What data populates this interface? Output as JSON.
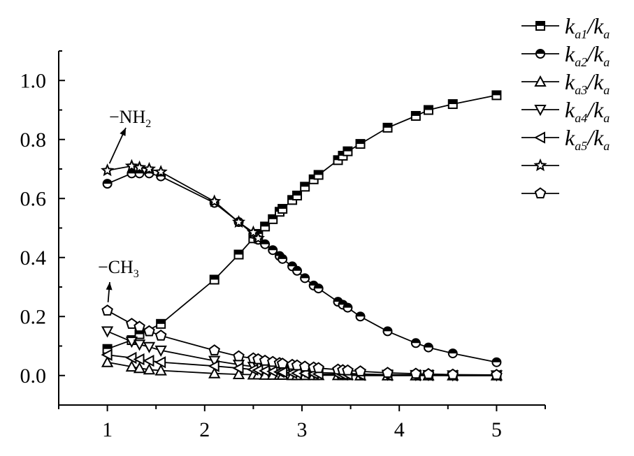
{
  "chart_data": {
    "type": "line",
    "title": "",
    "xlabel": "",
    "ylabel": "",
    "xlim": [
      0.5,
      5.5
    ],
    "ylim": [
      -0.1,
      1.1
    ],
    "x_ticks": [
      1,
      2,
      3,
      4,
      5
    ],
    "y_ticks": [
      0.0,
      0.2,
      0.4,
      0.6,
      0.8,
      1.0
    ],
    "x_tick_labels": [
      "1",
      "2",
      "3",
      "4",
      "5"
    ],
    "y_tick_labels": [
      "0.0",
      "0.2",
      "0.4",
      "0.6",
      "0.8",
      "1.0"
    ],
    "grid": false,
    "legend_position": "top-right",
    "series": [
      {
        "legend": {
          "pre": "k",
          "pre_sub": "a1",
          "post": "k",
          "post_sub": "a"
        },
        "marker": "square",
        "x": [
          1.0,
          1.25,
          1.33,
          1.55,
          2.1,
          2.35,
          2.5,
          2.55,
          2.62,
          2.7,
          2.77,
          2.8,
          2.9,
          2.95,
          3.03,
          3.12,
          3.17,
          3.37,
          3.42,
          3.47,
          3.6,
          3.88,
          4.17,
          4.3,
          4.55,
          5.0
        ],
        "y": [
          0.09,
          0.12,
          0.14,
          0.175,
          0.325,
          0.41,
          0.465,
          0.48,
          0.505,
          0.53,
          0.555,
          0.565,
          0.595,
          0.61,
          0.64,
          0.665,
          0.68,
          0.73,
          0.745,
          0.76,
          0.785,
          0.84,
          0.88,
          0.9,
          0.92,
          0.95
        ]
      },
      {
        "legend": {
          "pre": "k",
          "pre_sub": "a2",
          "post": "k",
          "post_sub": "a"
        },
        "marker": "circle",
        "x": [
          1.0,
          1.25,
          1.33,
          1.43,
          1.55,
          2.1,
          2.35,
          2.5,
          2.55,
          2.62,
          2.7,
          2.77,
          2.8,
          2.9,
          2.95,
          3.03,
          3.12,
          3.17,
          3.37,
          3.42,
          3.47,
          3.6,
          3.88,
          4.17,
          4.3,
          4.55,
          5.0
        ],
        "y": [
          0.65,
          0.685,
          0.685,
          0.685,
          0.675,
          0.585,
          0.52,
          0.48,
          0.46,
          0.445,
          0.425,
          0.405,
          0.395,
          0.37,
          0.355,
          0.33,
          0.305,
          0.295,
          0.25,
          0.24,
          0.23,
          0.2,
          0.15,
          0.11,
          0.095,
          0.075,
          0.045
        ]
      },
      {
        "legend": {
          "pre": "k",
          "pre_sub": "a3",
          "post": "k",
          "post_sub": "a"
        },
        "marker": "triangle-up",
        "x": [
          1.0,
          1.25,
          1.33,
          1.43,
          1.55,
          2.1,
          2.35,
          2.5,
          2.55,
          2.62,
          2.7,
          2.77,
          2.8,
          2.9,
          2.95,
          3.03,
          3.12,
          3.17,
          3.37,
          3.42,
          3.47,
          3.6,
          3.88,
          4.17,
          4.3,
          4.55,
          5.0
        ],
        "y": [
          0.045,
          0.03,
          0.025,
          0.02,
          0.017,
          0.007,
          0.004,
          0.003,
          0.003,
          0.002,
          0.002,
          0.002,
          0.002,
          0.001,
          0.001,
          0.001,
          0.001,
          0.001,
          0.001,
          0.001,
          0.001,
          0.0,
          0.0,
          0.0,
          0.0,
          0.0,
          0.0
        ]
      },
      {
        "legend": {
          "pre": "k",
          "pre_sub": "a4",
          "post": "k",
          "post_sub": "a"
        },
        "marker": "triangle-down",
        "x": [
          1.0,
          1.25,
          1.33,
          1.43,
          1.55,
          2.1,
          2.35,
          2.5,
          2.55,
          2.62,
          2.7,
          2.77,
          2.8,
          2.9,
          2.95,
          3.03,
          3.12,
          3.17,
          3.37,
          3.42,
          3.47,
          3.6,
          3.88,
          4.17,
          4.3,
          4.55,
          5.0
        ],
        "y": [
          0.15,
          0.115,
          0.105,
          0.097,
          0.085,
          0.05,
          0.037,
          0.03,
          0.028,
          0.025,
          0.022,
          0.02,
          0.019,
          0.016,
          0.015,
          0.013,
          0.011,
          0.01,
          0.008,
          0.007,
          0.007,
          0.005,
          0.003,
          0.002,
          0.002,
          0.001,
          0.001
        ]
      },
      {
        "legend": {
          "pre": "k",
          "pre_sub": "a5",
          "post": "k",
          "post_sub": "a"
        },
        "marker": "triangle-left",
        "x": [
          1.0,
          1.25,
          1.33,
          1.43,
          1.55,
          2.1,
          2.35,
          2.5,
          2.55,
          2.62,
          2.7,
          2.77,
          2.8,
          2.9,
          2.95,
          3.03,
          3.12,
          3.17,
          3.37,
          3.42,
          3.47,
          3.6,
          3.88,
          4.17,
          4.3,
          4.55,
          5.0
        ],
        "y": [
          0.07,
          0.06,
          0.055,
          0.05,
          0.045,
          0.032,
          0.025,
          0.02,
          0.018,
          0.016,
          0.014,
          0.012,
          0.011,
          0.009,
          0.008,
          0.007,
          0.006,
          0.005,
          0.004,
          0.003,
          0.003,
          0.002,
          0.001,
          0.001,
          0.001,
          0.0,
          0.0
        ]
      },
      {
        "legend": {
          "pre": "",
          "pre_sub": "",
          "post": "",
          "post_sub": ""
        },
        "marker": "star",
        "x": [
          1.0,
          1.25,
          1.33,
          1.43,
          1.55,
          2.1,
          2.35,
          2.5,
          2.55
        ],
        "y": [
          0.695,
          0.71,
          0.705,
          0.7,
          0.69,
          0.59,
          0.52,
          0.485,
          0.465
        ]
      },
      {
        "legend": {
          "pre": "",
          "pre_sub": "",
          "post": "",
          "post_sub": ""
        },
        "marker": "pentagon",
        "x": [
          1.0,
          1.25,
          1.33,
          1.43,
          1.55,
          2.1,
          2.35,
          2.5,
          2.55,
          2.62,
          2.7,
          2.77,
          2.8,
          2.9,
          2.95,
          3.03,
          3.12,
          3.17,
          3.37,
          3.42,
          3.47,
          3.6,
          3.88,
          4.17,
          4.3,
          4.55,
          5.0
        ],
        "y": [
          0.22,
          0.175,
          0.165,
          0.15,
          0.135,
          0.085,
          0.065,
          0.058,
          0.055,
          0.05,
          0.046,
          0.042,
          0.04,
          0.036,
          0.034,
          0.03,
          0.027,
          0.025,
          0.02,
          0.018,
          0.017,
          0.014,
          0.009,
          0.006,
          0.005,
          0.003,
          0.002
        ]
      }
    ],
    "annotations": [
      {
        "name": "nh2",
        "text": "−NH",
        "sub": "2",
        "arrow_target": {
          "x": 1.0,
          "y": 0.695
        }
      },
      {
        "name": "ch3",
        "text": "−CH",
        "sub": "3",
        "arrow_target": {
          "x": 1.0,
          "y": 0.22
        }
      }
    ]
  }
}
